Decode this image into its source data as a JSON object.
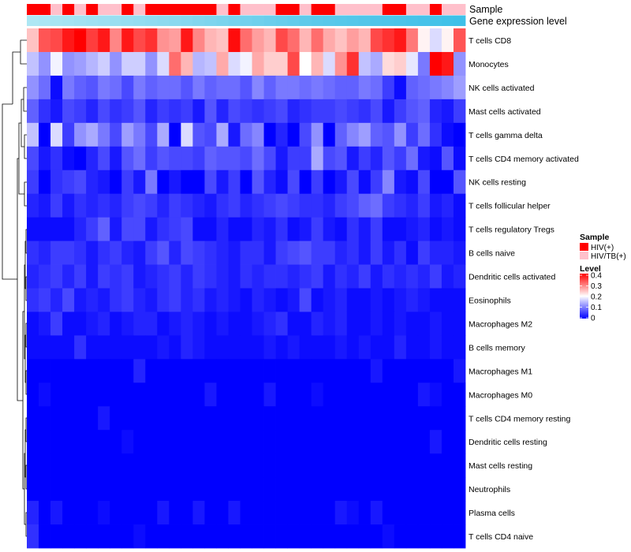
{
  "chart_data": {
    "type": "heatmap",
    "title": "",
    "annotation_labels": {
      "sample": "Sample",
      "gene": "Gene expression level"
    },
    "sample_legend": {
      "title": "Sample",
      "items": [
        {
          "label": "HIV(+)",
          "color": "#ff0000"
        },
        {
          "label": "HIV/TB(+)",
          "color": "#ffc0cb"
        }
      ]
    },
    "level_legend": {
      "title": "Level",
      "ticks": [
        "0.4",
        "0.3",
        "0.2",
        "0.1",
        "0"
      ],
      "min": 0,
      "max": 0.42,
      "colors": [
        "#0000ff",
        "#ffffff",
        "#ff0000"
      ]
    },
    "column_count": 37,
    "sample_groups": [
      0,
      0,
      1,
      0,
      1,
      0,
      1,
      1,
      0,
      1,
      0,
      0,
      0,
      0,
      0,
      0,
      1,
      0,
      1,
      1,
      1,
      0,
      0,
      1,
      0,
      0,
      1,
      1,
      1,
      1,
      0,
      0,
      1,
      1,
      0,
      1,
      1
    ],
    "gene_annotation_colors": [
      "#aee7f4",
      "#8ad9ef",
      "#5bc9ea",
      "#3fc0e8"
    ],
    "rows": [
      {
        "name": "T cells CD8",
        "values": [
          0.26,
          0.35,
          0.36,
          0.4,
          0.42,
          0.37,
          0.4,
          0.31,
          0.4,
          0.36,
          0.38,
          0.3,
          0.29,
          0.4,
          0.31,
          0.27,
          0.26,
          0.41,
          0.33,
          0.29,
          0.27,
          0.36,
          0.33,
          0.27,
          0.33,
          0.28,
          0.26,
          0.29,
          0.27,
          0.36,
          0.38,
          0.4,
          0.32,
          0.22,
          0.18,
          0.22,
          0.35
        ]
      },
      {
        "name": "Monocytes",
        "values": [
          0.16,
          0.12,
          0.2,
          0.12,
          0.13,
          0.15,
          0.17,
          0.12,
          0.17,
          0.17,
          0.12,
          0.18,
          0.33,
          0.27,
          0.15,
          0.16,
          0.28,
          0.18,
          0.2,
          0.28,
          0.25,
          0.25,
          0.36,
          0.21,
          0.27,
          0.18,
          0.3,
          0.38,
          0.16,
          0.14,
          0.24,
          0.25,
          0.19,
          0.1,
          0.42,
          0.4,
          0.12
        ]
      },
      {
        "name": "NK cells activated",
        "values": [
          0.12,
          0.09,
          0.01,
          0.1,
          0.08,
          0.07,
          0.1,
          0.09,
          0.06,
          0.1,
          0.08,
          0.09,
          0.09,
          0.07,
          0.1,
          0.08,
          0.09,
          0.09,
          0.07,
          0.11,
          0.08,
          0.1,
          0.1,
          0.09,
          0.1,
          0.09,
          0.08,
          0.08,
          0.1,
          0.09,
          0.05,
          0.01,
          0.08,
          0.09,
          0.1,
          0.11,
          0.13
        ]
      },
      {
        "name": "Mast cells activated",
        "values": [
          0.08,
          0.04,
          0.02,
          0.06,
          0.05,
          0.03,
          0.06,
          0.04,
          0.05,
          0.07,
          0.03,
          0.05,
          0.04,
          0.05,
          0.02,
          0.07,
          0.03,
          0.06,
          0.05,
          0.04,
          0.05,
          0.06,
          0.03,
          0.04,
          0.05,
          0.05,
          0.06,
          0.05,
          0.04,
          0.06,
          0.02,
          0.05,
          0.07,
          0.08,
          0.03,
          0.02,
          0.05
        ]
      },
      {
        "name": "T cells gamma delta",
        "values": [
          0.16,
          0.0,
          0.18,
          0.05,
          0.12,
          0.14,
          0.1,
          0.06,
          0.13,
          0.1,
          0.06,
          0.14,
          0.0,
          0.18,
          0.07,
          0.06,
          0.14,
          0.02,
          0.09,
          0.11,
          0.0,
          0.03,
          0.0,
          0.06,
          0.12,
          0.0,
          0.08,
          0.11,
          0.13,
          0.08,
          0.07,
          0.12,
          0.05,
          0.09,
          0.04,
          0.01,
          0.0
        ]
      },
      {
        "name": "T cells CD4 memory activated",
        "values": [
          0.06,
          0.02,
          0.04,
          0.01,
          0.0,
          0.03,
          0.06,
          0.02,
          0.07,
          0.09,
          0.05,
          0.07,
          0.06,
          0.06,
          0.05,
          0.08,
          0.07,
          0.07,
          0.06,
          0.09,
          0.06,
          0.02,
          0.05,
          0.05,
          0.14,
          0.06,
          0.07,
          0.02,
          0.05,
          0.03,
          0.07,
          0.05,
          0.09,
          0.02,
          0.01,
          0.07,
          0.01
        ]
      },
      {
        "name": "NK cells resting",
        "values": [
          0.05,
          0.0,
          0.04,
          0.05,
          0.06,
          0.03,
          0.02,
          0.0,
          0.05,
          0.02,
          0.1,
          0.0,
          0.02,
          0.0,
          0.0,
          0.06,
          0.02,
          0.05,
          0.0,
          0.07,
          0.03,
          0.01,
          0.06,
          0.0,
          0.05,
          0.0,
          0.02,
          0.06,
          0.01,
          0.05,
          0.11,
          0.02,
          0.01,
          0.06,
          0.0,
          0.0,
          0.07
        ]
      },
      {
        "name": "T cells follicular helper",
        "values": [
          0.03,
          0.02,
          0.05,
          0.02,
          0.04,
          0.03,
          0.04,
          0.03,
          0.05,
          0.06,
          0.05,
          0.03,
          0.05,
          0.04,
          0.03,
          0.02,
          0.04,
          0.05,
          0.03,
          0.04,
          0.05,
          0.06,
          0.05,
          0.04,
          0.04,
          0.03,
          0.05,
          0.06,
          0.08,
          0.09,
          0.05,
          0.04,
          0.03,
          0.05,
          0.02,
          0.03,
          0.01
        ]
      },
      {
        "name": "T cells regulatory  Tregs",
        "values": [
          0.01,
          0.01,
          0.01,
          0.01,
          0.03,
          0.05,
          0.08,
          0.02,
          0.06,
          0.06,
          0.02,
          0.04,
          0.05,
          0.06,
          0.01,
          0.01,
          0.03,
          0.01,
          0.01,
          0.03,
          0.02,
          0.04,
          0.01,
          0.02,
          0.05,
          0.02,
          0.01,
          0.04,
          0.02,
          0.05,
          0.01,
          0.01,
          0.02,
          0.03,
          0.01,
          0.02,
          0.01
        ]
      },
      {
        "name": "B cells naive",
        "values": [
          0.04,
          0.03,
          0.05,
          0.05,
          0.04,
          0.02,
          0.04,
          0.05,
          0.03,
          0.02,
          0.05,
          0.07,
          0.03,
          0.06,
          0.05,
          0.04,
          0.03,
          0.02,
          0.04,
          0.04,
          0.02,
          0.05,
          0.06,
          0.07,
          0.05,
          0.05,
          0.03,
          0.04,
          0.02,
          0.05,
          0.02,
          0.04,
          0.01,
          0.05,
          0.03,
          0.03,
          0.02
        ]
      },
      {
        "name": "Dendritic cells activated",
        "values": [
          0.03,
          0.04,
          0.05,
          0.03,
          0.05,
          0.02,
          0.05,
          0.04,
          0.05,
          0.02,
          0.03,
          0.04,
          0.05,
          0.03,
          0.05,
          0.04,
          0.03,
          0.02,
          0.04,
          0.03,
          0.04,
          0.04,
          0.03,
          0.04,
          0.05,
          0.02,
          0.04,
          0.03,
          0.05,
          0.02,
          0.04,
          0.03,
          0.04,
          0.03,
          0.05,
          0.02,
          0.03
        ]
      },
      {
        "name": "Eosinophils",
        "values": [
          0.04,
          0.05,
          0.03,
          0.06,
          0.02,
          0.03,
          0.02,
          0.04,
          0.05,
          0.03,
          0.02,
          0.04,
          0.05,
          0.03,
          0.04,
          0.02,
          0.03,
          0.02,
          0.01,
          0.03,
          0.02,
          0.01,
          0.02,
          0.06,
          0.01,
          0.02,
          0.03,
          0.01,
          0.01,
          0.02,
          0.01,
          0.02,
          0.03,
          0.02,
          0.01,
          0.01,
          0.01
        ]
      },
      {
        "name": "Macrophages M2",
        "values": [
          0.01,
          0.02,
          0.05,
          0.01,
          0.01,
          0.02,
          0.03,
          0.01,
          0.02,
          0.03,
          0.03,
          0.01,
          0.02,
          0.03,
          0.02,
          0.01,
          0.02,
          0.01,
          0.01,
          0.02,
          0.03,
          0.04,
          0.01,
          0.01,
          0.03,
          0.02,
          0.03,
          0.01,
          0.01,
          0.02,
          0.01,
          0.02,
          0.01,
          0.01,
          0.02,
          0.01,
          0.01
        ]
      },
      {
        "name": "B cells memory",
        "values": [
          0.01,
          0.01,
          0.01,
          0.01,
          0.04,
          0.01,
          0.01,
          0.01,
          0.01,
          0.01,
          0.01,
          0.02,
          0.01,
          0.03,
          0.02,
          0.01,
          0.01,
          0.01,
          0.01,
          0.01,
          0.02,
          0.01,
          0.02,
          0.01,
          0.01,
          0.01,
          0.02,
          0.01,
          0.02,
          0.01,
          0.01,
          0.03,
          0.01,
          0.01,
          0.02,
          0.01,
          0.01
        ]
      },
      {
        "name": "Macrophages M1",
        "values": [
          0.0,
          0.0,
          0.0,
          0.0,
          0.0,
          0.0,
          0.0,
          0.0,
          0.0,
          0.03,
          0.0,
          0.0,
          0.0,
          0.0,
          0.0,
          0.0,
          0.0,
          0.0,
          0.0,
          0.0,
          0.0,
          0.0,
          0.0,
          0.0,
          0.0,
          0.0,
          0.0,
          0.0,
          0.0,
          0.02,
          0.0,
          0.0,
          0.0,
          0.0,
          0.0,
          0.0,
          0.02
        ]
      },
      {
        "name": "Macrophages M0",
        "values": [
          0.0,
          0.01,
          0.0,
          0.0,
          0.0,
          0.0,
          0.0,
          0.0,
          0.0,
          0.0,
          0.0,
          0.0,
          0.0,
          0.0,
          0.0,
          0.02,
          0.0,
          0.0,
          0.0,
          0.0,
          0.02,
          0.0,
          0.0,
          0.0,
          0.01,
          0.0,
          0.0,
          0.0,
          0.0,
          0.0,
          0.0,
          0.0,
          0.0,
          0.02,
          0.01,
          0.0,
          0.0
        ]
      },
      {
        "name": "T cells CD4 memory resting",
        "values": [
          0.0,
          0.0,
          0.0,
          0.0,
          0.0,
          0.0,
          0.02,
          0.0,
          0.0,
          0.0,
          0.0,
          0.0,
          0.0,
          0.0,
          0.0,
          0.0,
          0.0,
          0.0,
          0.0,
          0.0,
          0.0,
          0.0,
          0.0,
          0.0,
          0.0,
          0.0,
          0.0,
          0.0,
          0.0,
          0.0,
          0.0,
          0.0,
          0.0,
          0.0,
          0.0,
          0.0,
          0.0
        ]
      },
      {
        "name": "Dendritic cells resting",
        "values": [
          0.0,
          0.0,
          0.0,
          0.0,
          0.0,
          0.0,
          0.0,
          0.0,
          0.01,
          0.0,
          0.0,
          0.0,
          0.0,
          0.0,
          0.0,
          0.0,
          0.0,
          0.0,
          0.0,
          0.0,
          0.0,
          0.0,
          0.0,
          0.0,
          0.0,
          0.0,
          0.0,
          0.0,
          0.0,
          0.0,
          0.0,
          0.0,
          0.0,
          0.0,
          0.02,
          0.0,
          0.0
        ]
      },
      {
        "name": "Mast cells resting",
        "values": [
          0.0,
          0.0,
          0.0,
          0.0,
          0.0,
          0.0,
          0.0,
          0.0,
          0.0,
          0.0,
          0.0,
          0.0,
          0.0,
          0.0,
          0.0,
          0.0,
          0.0,
          0.0,
          0.0,
          0.0,
          0.0,
          0.0,
          0.0,
          0.0,
          0.0,
          0.0,
          0.0,
          0.0,
          0.0,
          0.0,
          0.0,
          0.0,
          0.0,
          0.0,
          0.0,
          0.0,
          0.0
        ]
      },
      {
        "name": "Neutrophils",
        "values": [
          0.0,
          0.0,
          0.0,
          0.0,
          0.0,
          0.0,
          0.0,
          0.0,
          0.0,
          0.0,
          0.0,
          0.0,
          0.0,
          0.0,
          0.0,
          0.0,
          0.0,
          0.0,
          0.0,
          0.0,
          0.0,
          0.0,
          0.0,
          0.0,
          0.0,
          0.0,
          0.0,
          0.0,
          0.0,
          0.0,
          0.0,
          0.0,
          0.0,
          0.0,
          0.0,
          0.0,
          0.0
        ]
      },
      {
        "name": "Plasma cells",
        "values": [
          0.03,
          0.0,
          0.02,
          0.0,
          0.0,
          0.0,
          0.01,
          0.0,
          0.0,
          0.0,
          0.0,
          0.02,
          0.0,
          0.0,
          0.02,
          0.0,
          0.0,
          0.02,
          0.0,
          0.0,
          0.0,
          0.0,
          0.0,
          0.0,
          0.0,
          0.0,
          0.02,
          0.01,
          0.0,
          0.02,
          0.0,
          0.0,
          0.0,
          0.0,
          0.0,
          0.0,
          0.0
        ]
      },
      {
        "name": "T cells CD4 naive",
        "values": [
          0.04,
          0.0,
          0.0,
          0.0,
          0.0,
          0.0,
          0.0,
          0.0,
          0.0,
          0.01,
          0.0,
          0.0,
          0.0,
          0.0,
          0.0,
          0.0,
          0.0,
          0.0,
          0.0,
          0.0,
          0.0,
          0.0,
          0.0,
          0.0,
          0.0,
          0.0,
          0.0,
          0.0,
          0.0,
          0.0,
          0.01,
          0.0,
          0.0,
          0.0,
          0.0,
          0.0,
          0.0
        ]
      }
    ]
  }
}
